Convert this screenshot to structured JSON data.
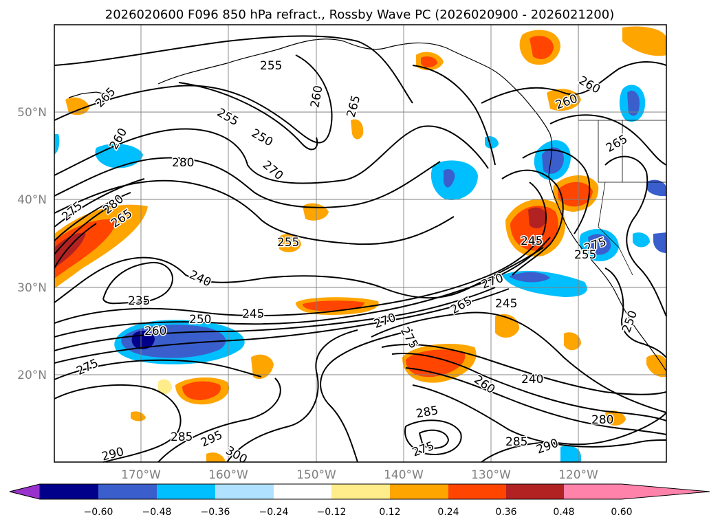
{
  "title": "2026020600 F096 850 hPa refract., Rossby Wave PC (2026020900 - 2026021200)",
  "map": {
    "lat_labels": [
      "50°N",
      "40°N",
      "30°N",
      "20°N"
    ],
    "lon_labels": [
      "170°W",
      "160°W",
      "150°W",
      "140°W",
      "130°W",
      "120°W"
    ],
    "contour_labels": [
      "255",
      "265",
      "260",
      "265",
      "255",
      "250",
      "280",
      "270",
      "260",
      "275",
      "280",
      "265",
      "255",
      "240",
      "235",
      "250",
      "245",
      "260",
      "270",
      "265",
      "245",
      "270",
      "275",
      "260",
      "240",
      "275",
      "280",
      "285",
      "295",
      "300",
      "290",
      "285",
      "275",
      "285",
      "290",
      "245",
      "250",
      "260",
      "265",
      "260",
      "275",
      "255"
    ]
  },
  "colorbar": {
    "ticks": [
      "−0.60",
      "−0.48",
      "−0.36",
      "−0.24",
      "−0.12",
      "0.12",
      "0.24",
      "0.36",
      "0.48",
      "0.60"
    ],
    "colors": [
      "#9932cc",
      "#00008b",
      "#3a5fcd",
      "#00bfff",
      "#b0e2ff",
      "#ffffff",
      "#ffec8b",
      "#ffa500",
      "#ff4500",
      "#b22222",
      "#ff82ab"
    ]
  }
}
